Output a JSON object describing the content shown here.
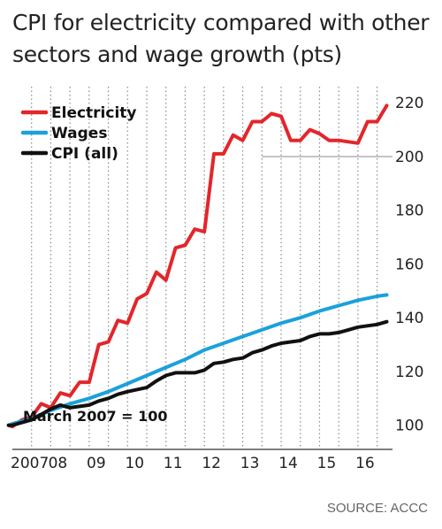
{
  "chart_data": {
    "type": "line",
    "title": "CPI for electricity compared with other sectors and wage growth (pts)",
    "annotation": "March 2007 = 100",
    "source": "SOURCE: ACCC",
    "xlim": [
      2007,
      2016.9
    ],
    "ylim": [
      91,
      226
    ],
    "x_ticks": [
      {
        "value": 2007,
        "label": "2007"
      },
      {
        "value": 2008,
        "label": "08"
      },
      {
        "value": 2009,
        "label": "09"
      },
      {
        "value": 2010,
        "label": "10"
      },
      {
        "value": 2011,
        "label": "11"
      },
      {
        "value": 2012,
        "label": "12"
      },
      {
        "value": 2013,
        "label": "13"
      },
      {
        "value": 2014,
        "label": "14"
      },
      {
        "value": 2015,
        "label": "15"
      },
      {
        "value": 2016,
        "label": "16"
      }
    ],
    "y_ticks": [
      100,
      120,
      140,
      160,
      180,
      200,
      220
    ],
    "grid": {
      "vertical": "dotted",
      "horizontal_at": [
        200
      ]
    },
    "legend_position": "top-left",
    "series": [
      {
        "name": "Electricity",
        "color": "#e3262b",
        "points": [
          [
            2006.9,
            100
          ],
          [
            2007.0,
            99.5
          ],
          [
            2007.25,
            102
          ],
          [
            2007.5,
            103
          ],
          [
            2007.75,
            108
          ],
          [
            2008.0,
            106.5
          ],
          [
            2008.25,
            112
          ],
          [
            2008.5,
            111
          ],
          [
            2008.75,
            116
          ],
          [
            2009.0,
            116
          ],
          [
            2009.25,
            130
          ],
          [
            2009.5,
            131
          ],
          [
            2009.75,
            139
          ],
          [
            2010.0,
            138
          ],
          [
            2010.25,
            147
          ],
          [
            2010.5,
            149
          ],
          [
            2010.75,
            157
          ],
          [
            2011.0,
            154
          ],
          [
            2011.25,
            166
          ],
          [
            2011.5,
            167
          ],
          [
            2011.75,
            173
          ],
          [
            2012.0,
            172
          ],
          [
            2012.25,
            201
          ],
          [
            2012.5,
            201
          ],
          [
            2012.75,
            208
          ],
          [
            2013.0,
            206
          ],
          [
            2013.25,
            213
          ],
          [
            2013.5,
            213
          ],
          [
            2013.75,
            216
          ],
          [
            2014.0,
            215
          ],
          [
            2014.25,
            206
          ],
          [
            2014.5,
            206
          ],
          [
            2014.75,
            210
          ],
          [
            2015.0,
            208.5
          ],
          [
            2015.25,
            206
          ],
          [
            2015.5,
            206
          ],
          [
            2015.75,
            205.5
          ],
          [
            2016.0,
            205
          ],
          [
            2016.25,
            213
          ],
          [
            2016.5,
            213
          ],
          [
            2016.75,
            219
          ]
        ]
      },
      {
        "name": "Wages",
        "color": "#1ba1dc",
        "points": [
          [
            2006.9,
            100
          ],
          [
            2007.0,
            100.5
          ],
          [
            2007.5,
            102.5
          ],
          [
            2008.0,
            105.5
          ],
          [
            2008.5,
            108
          ],
          [
            2009.0,
            110
          ],
          [
            2009.5,
            112.5
          ],
          [
            2010.0,
            115.5
          ],
          [
            2010.5,
            118.5
          ],
          [
            2011.0,
            121.5
          ],
          [
            2011.5,
            124.5
          ],
          [
            2012.0,
            128
          ],
          [
            2012.5,
            130.5
          ],
          [
            2013.0,
            133
          ],
          [
            2013.5,
            135.5
          ],
          [
            2014.0,
            138
          ],
          [
            2014.5,
            140
          ],
          [
            2015.0,
            142.5
          ],
          [
            2015.5,
            144.5
          ],
          [
            2016.0,
            146.5
          ],
          [
            2016.5,
            148
          ],
          [
            2016.75,
            148.5
          ]
        ]
      },
      {
        "name": "CPI (all)",
        "color": "#111111",
        "points": [
          [
            2006.9,
            100
          ],
          [
            2007.0,
            100
          ],
          [
            2007.5,
            102
          ],
          [
            2007.75,
            104
          ],
          [
            2008.0,
            106
          ],
          [
            2008.25,
            107.5
          ],
          [
            2008.5,
            106.5
          ],
          [
            2008.75,
            107
          ],
          [
            2009.0,
            107.5
          ],
          [
            2009.25,
            109
          ],
          [
            2009.5,
            110
          ],
          [
            2009.75,
            111.5
          ],
          [
            2010.0,
            112.5
          ],
          [
            2010.5,
            114
          ],
          [
            2010.75,
            116.5
          ],
          [
            2011.0,
            118.5
          ],
          [
            2011.25,
            119.5
          ],
          [
            2011.5,
            119.5
          ],
          [
            2011.75,
            119.5
          ],
          [
            2012.0,
            120.5
          ],
          [
            2012.25,
            123
          ],
          [
            2012.5,
            123.5
          ],
          [
            2012.75,
            124.5
          ],
          [
            2013.0,
            125
          ],
          [
            2013.25,
            127
          ],
          [
            2013.5,
            128
          ],
          [
            2013.75,
            129.5
          ],
          [
            2014.0,
            130.5
          ],
          [
            2014.5,
            131.5
          ],
          [
            2014.75,
            133
          ],
          [
            2015.0,
            134
          ],
          [
            2015.25,
            134
          ],
          [
            2015.5,
            134.5
          ],
          [
            2015.75,
            135.5
          ],
          [
            2016.0,
            136.5
          ],
          [
            2016.5,
            137.5
          ],
          [
            2016.75,
            138.5
          ]
        ]
      }
    ]
  }
}
